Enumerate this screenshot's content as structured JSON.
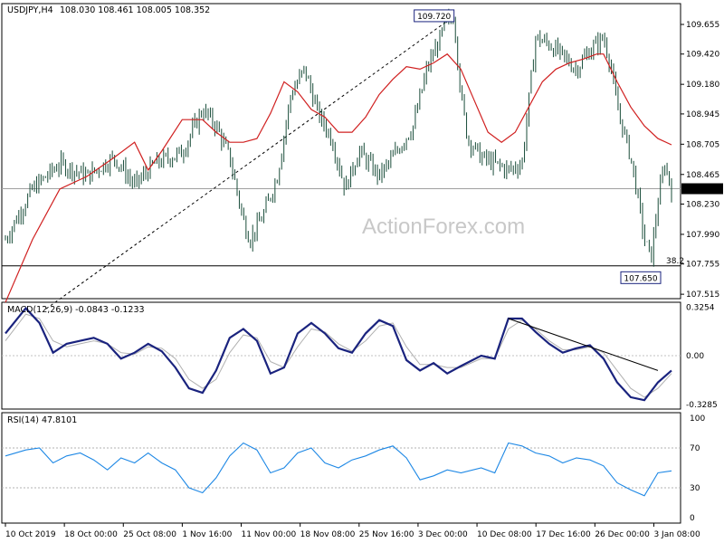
{
  "chart_data": {
    "type": "candlestick",
    "instrument": "USDJPY,H4",
    "ohlc_text": "108.030 108.461 108.005 108.352",
    "watermark": "ActionForex.com",
    "x_ticks": [
      "10 Oct 2019",
      "18 Oct 00:00",
      "25 Oct 08:00",
      "1 Nov 16:00",
      "11 Nov 00:00",
      "18 Nov 08:00",
      "25 Nov 16:00",
      "3 Dec 00:00",
      "10 Dec 08:00",
      "17 Dec 16:00",
      "26 Dec 00:00",
      "3 Jan 08:00"
    ],
    "price": {
      "ylim": [
        107.48,
        109.82
      ],
      "ticks": [
        "109.655",
        "109.420",
        "109.180",
        "108.945",
        "108.705",
        "108.465",
        "108.230",
        "107.990",
        "107.755",
        "107.515"
      ],
      "current_price": "108.352",
      "current_value": 108.352,
      "support_level": 107.74,
      "high_annotation": {
        "label": "109.720",
        "value": 109.72
      },
      "low_annotation": {
        "label": "107.650",
        "value": 107.65
      },
      "fib_label": "38.2",
      "close_path": [
        [
          0,
          107.95
        ],
        [
          4,
          108.35
        ],
        [
          8,
          108.55
        ],
        [
          12,
          108.45
        ],
        [
          16,
          108.6
        ],
        [
          19,
          108.38
        ],
        [
          22,
          108.55
        ],
        [
          26,
          108.64
        ],
        [
          29,
          108.98
        ],
        [
          31,
          108.85
        ],
        [
          33,
          108.6
        ],
        [
          35,
          108.1
        ],
        [
          36,
          107.95
        ],
        [
          38,
          108.15
        ],
        [
          40,
          108.45
        ],
        [
          42,
          109.1
        ],
        [
          44,
          109.3
        ],
        [
          46,
          108.95
        ],
        [
          48,
          108.75
        ],
        [
          50,
          108.35
        ],
        [
          52,
          108.65
        ],
        [
          55,
          108.45
        ],
        [
          57,
          108.6
        ],
        [
          60,
          108.85
        ],
        [
          62,
          109.3
        ],
        [
          64,
          109.55
        ],
        [
          65,
          109.68
        ],
        [
          66,
          109.72
        ],
        [
          67,
          109.1
        ],
        [
          68,
          108.75
        ],
        [
          70,
          108.6
        ],
        [
          72,
          108.55
        ],
        [
          74,
          108.5
        ],
        [
          76,
          108.55
        ],
        [
          78,
          109.55
        ],
        [
          80,
          109.5
        ],
        [
          82,
          109.4
        ],
        [
          84,
          109.3
        ],
        [
          86,
          109.45
        ],
        [
          88,
          109.55
        ],
        [
          89,
          109.35
        ],
        [
          90,
          109.0
        ],
        [
          92,
          108.6
        ],
        [
          93,
          108.3
        ],
        [
          94,
          107.95
        ],
        [
          95,
          107.8
        ],
        [
          96,
          108.25
        ],
        [
          97,
          108.55
        ],
        [
          98,
          108.35
        ]
      ],
      "ma_path": [
        [
          0,
          107.45
        ],
        [
          4,
          107.95
        ],
        [
          8,
          108.35
        ],
        [
          12,
          108.45
        ],
        [
          16,
          108.6
        ],
        [
          19,
          108.72
        ],
        [
          21,
          108.5
        ],
        [
          23,
          108.65
        ],
        [
          26,
          108.9
        ],
        [
          29,
          108.9
        ],
        [
          31,
          108.8
        ],
        [
          33,
          108.72
        ],
        [
          35,
          108.72
        ],
        [
          37,
          108.75
        ],
        [
          39,
          108.95
        ],
        [
          41,
          109.2
        ],
        [
          43,
          109.12
        ],
        [
          45,
          108.98
        ],
        [
          47,
          108.92
        ],
        [
          49,
          108.8
        ],
        [
          51,
          108.8
        ],
        [
          53,
          108.92
        ],
        [
          55,
          109.1
        ],
        [
          57,
          109.22
        ],
        [
          59,
          109.32
        ],
        [
          61,
          109.3
        ],
        [
          63,
          109.35
        ],
        [
          65,
          109.42
        ],
        [
          67,
          109.3
        ],
        [
          69,
          109.05
        ],
        [
          71,
          108.8
        ],
        [
          73,
          108.72
        ],
        [
          75,
          108.8
        ],
        [
          77,
          109.0
        ],
        [
          79,
          109.2
        ],
        [
          81,
          109.3
        ],
        [
          83,
          109.35
        ],
        [
          85,
          109.38
        ],
        [
          87,
          109.42
        ],
        [
          88,
          109.42
        ],
        [
          90,
          109.2
        ],
        [
          92,
          109.0
        ],
        [
          94,
          108.85
        ],
        [
          96,
          108.75
        ],
        [
          98,
          108.7
        ]
      ],
      "trendline": {
        "from": [
          6,
          107.4
        ],
        "to": [
          66,
          109.72
        ]
      }
    },
    "macd": {
      "label": "MACD(12,26,9) -0.0843 -0.1233",
      "ylim": [
        -0.36,
        0.36
      ],
      "ticks": [
        "0.3254",
        "0.00",
        "-0.3285"
      ],
      "main_path": [
        [
          0,
          0.15
        ],
        [
          3,
          0.32
        ],
        [
          5,
          0.22
        ],
        [
          7,
          0.02
        ],
        [
          9,
          0.08
        ],
        [
          11,
          0.1
        ],
        [
          13,
          0.12
        ],
        [
          15,
          0.08
        ],
        [
          17,
          -0.02
        ],
        [
          19,
          0.02
        ],
        [
          21,
          0.08
        ],
        [
          23,
          0.03
        ],
        [
          25,
          -0.08
        ],
        [
          27,
          -0.22
        ],
        [
          29,
          -0.25
        ],
        [
          31,
          -0.1
        ],
        [
          33,
          0.12
        ],
        [
          35,
          0.18
        ],
        [
          37,
          0.1
        ],
        [
          39,
          -0.12
        ],
        [
          41,
          -0.08
        ],
        [
          43,
          0.15
        ],
        [
          45,
          0.22
        ],
        [
          47,
          0.15
        ],
        [
          49,
          0.05
        ],
        [
          51,
          0.02
        ],
        [
          53,
          0.15
        ],
        [
          55,
          0.24
        ],
        [
          57,
          0.2
        ],
        [
          59,
          -0.03
        ],
        [
          61,
          -0.1
        ],
        [
          63,
          -0.05
        ],
        [
          65,
          -0.12
        ],
        [
          67,
          -0.07
        ],
        [
          70,
          0.0
        ],
        [
          72,
          -0.02
        ],
        [
          74,
          0.25
        ],
        [
          76,
          0.25
        ],
        [
          78,
          0.16
        ],
        [
          80,
          0.08
        ],
        [
          82,
          0.02
        ],
        [
          84,
          0.05
        ],
        [
          86,
          0.07
        ],
        [
          88,
          -0.02
        ],
        [
          90,
          -0.18
        ],
        [
          92,
          -0.28
        ],
        [
          94,
          -0.3
        ],
        [
          96,
          -0.18
        ],
        [
          98,
          -0.1
        ]
      ],
      "signal_path": [
        [
          0,
          0.1
        ],
        [
          3,
          0.28
        ],
        [
          5,
          0.25
        ],
        [
          7,
          0.1
        ],
        [
          9,
          0.06
        ],
        [
          11,
          0.08
        ],
        [
          13,
          0.1
        ],
        [
          15,
          0.08
        ],
        [
          17,
          0.02
        ],
        [
          19,
          0.01
        ],
        [
          21,
          0.06
        ],
        [
          23,
          0.05
        ],
        [
          25,
          -0.02
        ],
        [
          27,
          -0.16
        ],
        [
          29,
          -0.22
        ],
        [
          31,
          -0.16
        ],
        [
          33,
          0.02
        ],
        [
          35,
          0.14
        ],
        [
          37,
          0.12
        ],
        [
          39,
          -0.04
        ],
        [
          41,
          -0.08
        ],
        [
          43,
          0.06
        ],
        [
          45,
          0.18
        ],
        [
          47,
          0.16
        ],
        [
          49,
          0.08
        ],
        [
          51,
          0.03
        ],
        [
          53,
          0.1
        ],
        [
          55,
          0.2
        ],
        [
          57,
          0.22
        ],
        [
          59,
          0.06
        ],
        [
          61,
          -0.06
        ],
        [
          63,
          -0.06
        ],
        [
          65,
          -0.08
        ],
        [
          67,
          -0.08
        ],
        [
          70,
          -0.02
        ],
        [
          72,
          -0.02
        ],
        [
          74,
          0.18
        ],
        [
          76,
          0.24
        ],
        [
          78,
          0.18
        ],
        [
          80,
          0.1
        ],
        [
          82,
          0.04
        ],
        [
          84,
          0.04
        ],
        [
          86,
          0.06
        ],
        [
          88,
          0.02
        ],
        [
          90,
          -0.1
        ],
        [
          92,
          -0.22
        ],
        [
          94,
          -0.28
        ],
        [
          96,
          -0.22
        ],
        [
          98,
          -0.12
        ]
      ],
      "trendline": {
        "from": [
          74,
          0.25
        ],
        "to": [
          96,
          -0.1
        ]
      }
    },
    "rsi": {
      "label": "RSI(14) 47.8101",
      "ylim": [
        0,
        100
      ],
      "ticks": [
        "100",
        "70",
        "30",
        "0"
      ],
      "levels": [
        70,
        30
      ],
      "path": [
        [
          0,
          62
        ],
        [
          3,
          68
        ],
        [
          5,
          70
        ],
        [
          7,
          55
        ],
        [
          9,
          62
        ],
        [
          11,
          65
        ],
        [
          13,
          58
        ],
        [
          15,
          48
        ],
        [
          17,
          60
        ],
        [
          19,
          55
        ],
        [
          21,
          65
        ],
        [
          23,
          55
        ],
        [
          25,
          48
        ],
        [
          27,
          30
        ],
        [
          29,
          25
        ],
        [
          31,
          40
        ],
        [
          33,
          62
        ],
        [
          35,
          75
        ],
        [
          37,
          68
        ],
        [
          39,
          45
        ],
        [
          41,
          50
        ],
        [
          43,
          65
        ],
        [
          45,
          70
        ],
        [
          47,
          55
        ],
        [
          49,
          50
        ],
        [
          51,
          58
        ],
        [
          53,
          62
        ],
        [
          55,
          68
        ],
        [
          57,
          72
        ],
        [
          59,
          60
        ],
        [
          61,
          38
        ],
        [
          63,
          42
        ],
        [
          65,
          48
        ],
        [
          67,
          45
        ],
        [
          70,
          50
        ],
        [
          72,
          45
        ],
        [
          74,
          75
        ],
        [
          76,
          72
        ],
        [
          78,
          65
        ],
        [
          80,
          62
        ],
        [
          82,
          55
        ],
        [
          84,
          60
        ],
        [
          86,
          58
        ],
        [
          88,
          52
        ],
        [
          90,
          35
        ],
        [
          92,
          28
        ],
        [
          94,
          22
        ],
        [
          96,
          45
        ],
        [
          98,
          47
        ]
      ]
    }
  }
}
